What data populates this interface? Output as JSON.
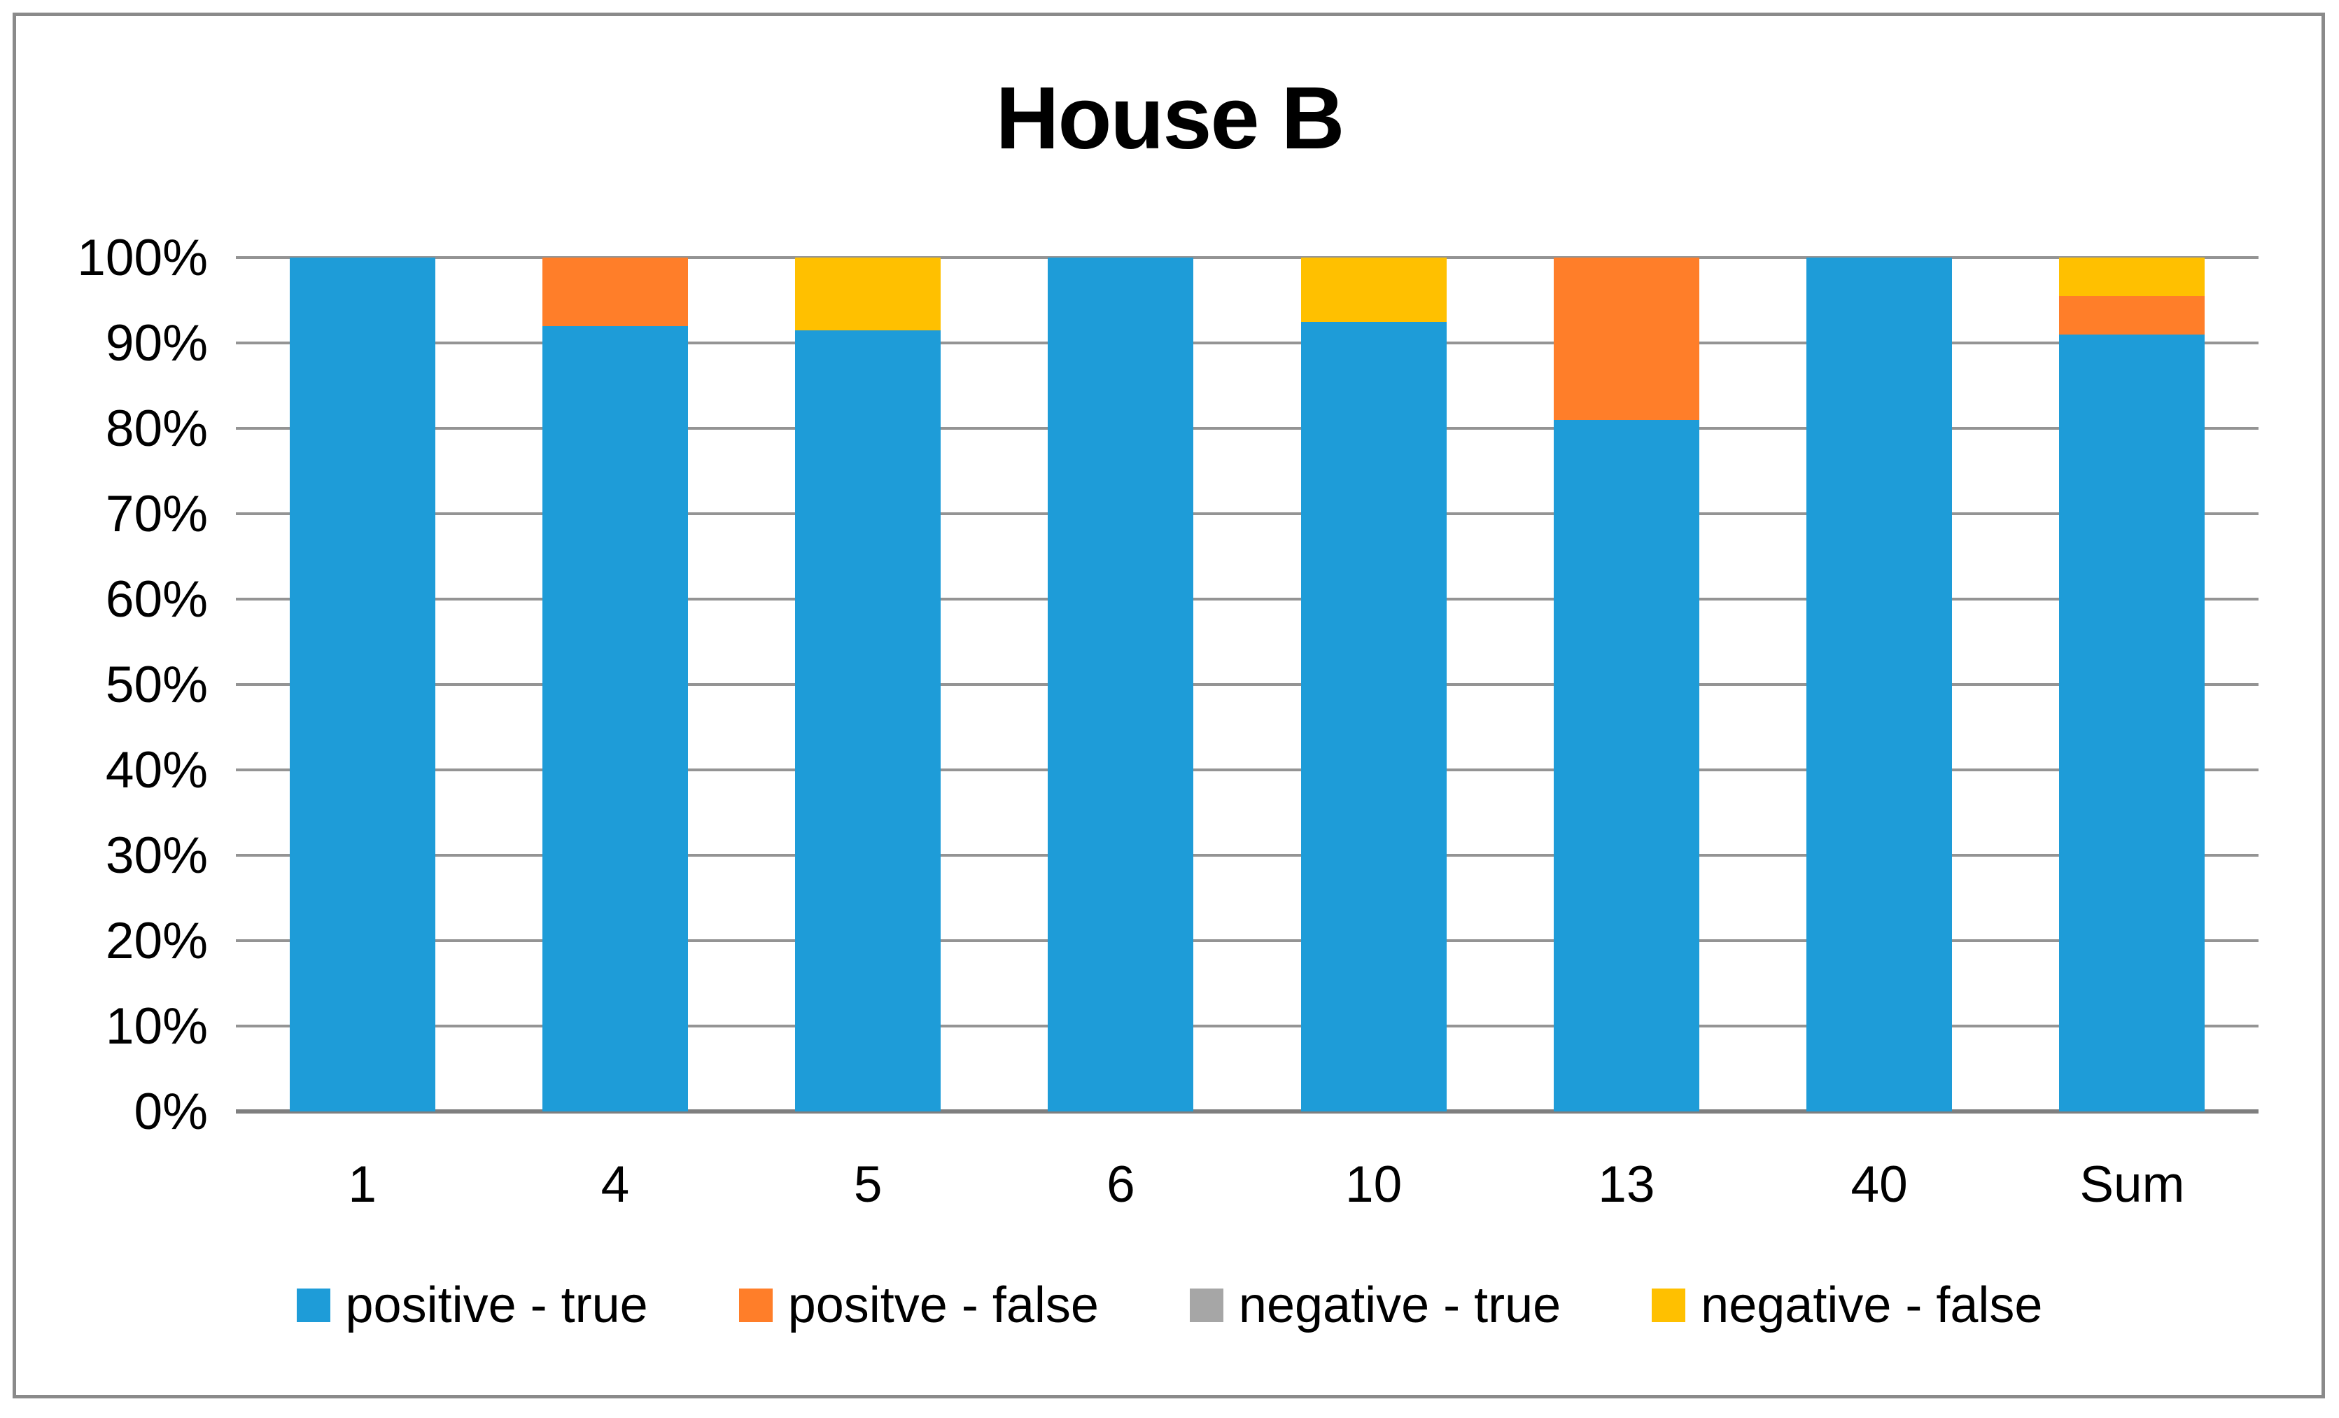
{
  "title": "House B",
  "chart_data": {
    "type": "bar",
    "stacked": true,
    "percent_stacked": true,
    "title": "House B",
    "categories": [
      "1",
      "4",
      "5",
      "6",
      "10",
      "13",
      "40",
      "Sum"
    ],
    "series": [
      {
        "name": "positive - true",
        "color": "#1E9CD8",
        "values": [
          100,
          92,
          91.5,
          100,
          92.5,
          81,
          100,
          91
        ]
      },
      {
        "name": "positve - false",
        "color": "#FF7E29",
        "values": [
          0,
          8,
          0,
          0,
          0,
          19,
          0,
          4.5
        ]
      },
      {
        "name": "negative - true",
        "color": "#A6A6A6",
        "values": [
          0,
          0,
          0,
          0,
          0,
          0,
          0,
          0
        ]
      },
      {
        "name": "negative - false",
        "color": "#FFC000",
        "values": [
          0,
          0,
          8.5,
          0,
          7.5,
          0,
          0,
          4.5
        ]
      }
    ],
    "ylabel": "",
    "xlabel": "",
    "ylim": [
      0,
      100
    ],
    "yticks": [
      "0%",
      "10%",
      "20%",
      "30%",
      "40%",
      "50%",
      "60%",
      "70%",
      "80%",
      "90%",
      "100%"
    ],
    "grid": true,
    "gridline_color": "#949494",
    "axis_line_color": "#7F7F7F",
    "legend_position": "bottom",
    "frame_border_color": "#8A8A8A",
    "background_color": "#FFFFFF"
  }
}
